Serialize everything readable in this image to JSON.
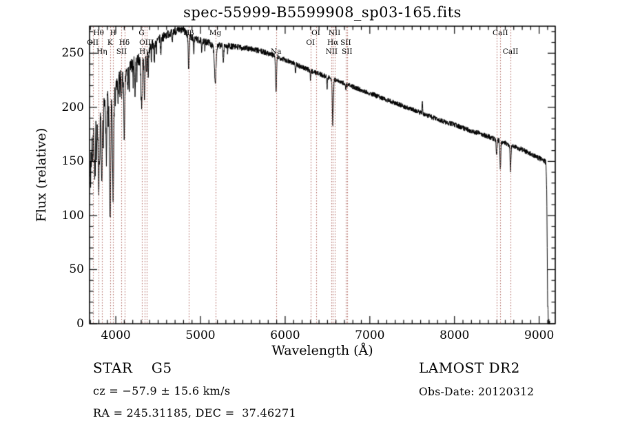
{
  "title": "spec-55999-B5599908_sp03-165.fits",
  "footer": {
    "class_label": "STAR    G5",
    "survey": "LAMOST DR2",
    "cz": "cz = −57.9 ± 15.6 km/s",
    "obs_date": "Obs-Date: 20120312",
    "radec": "RA = 245.31185, DEC =  37.46271"
  },
  "chart_data": {
    "type": "line",
    "title": "spec-55999-B5599908_sp03-165.fits",
    "xlabel": "Wavelength (Å)",
    "ylabel": "Flux (relative)",
    "xlim": [
      3690,
      9190
    ],
    "ylim": [
      0,
      275
    ],
    "x_major_ticks": [
      4000,
      5000,
      6000,
      7000,
      8000,
      9000
    ],
    "y_major_ticks": [
      0,
      50,
      100,
      150,
      200,
      250
    ],
    "x_minor_step": 100,
    "y_minor_step": 10,
    "grid": false,
    "line_color": "#000000",
    "marker_line_color": "#aa5a52",
    "wl_range": [
      3695,
      9125
    ],
    "sample_step": 2,
    "noise_seed": 7,
    "continuum": [
      [
        3690,
        130
      ],
      [
        3700,
        165
      ],
      [
        3720,
        178
      ],
      [
        3745,
        182
      ],
      [
        3780,
        180
      ],
      [
        3820,
        190
      ],
      [
        3860,
        200
      ],
      [
        3900,
        212
      ],
      [
        3940,
        212
      ],
      [
        3980,
        215
      ],
      [
        4020,
        224
      ],
      [
        4060,
        228
      ],
      [
        4100,
        228
      ],
      [
        4140,
        234
      ],
      [
        4180,
        238
      ],
      [
        4220,
        242
      ],
      [
        4260,
        244
      ],
      [
        4300,
        243
      ],
      [
        4340,
        248
      ],
      [
        4380,
        252
      ],
      [
        4440,
        258
      ],
      [
        4500,
        262
      ],
      [
        4560,
        265
      ],
      [
        4620,
        268
      ],
      [
        4680,
        270
      ],
      [
        4740,
        271
      ],
      [
        4800,
        272
      ],
      [
        4860,
        266
      ],
      [
        4920,
        264
      ],
      [
        4980,
        262
      ],
      [
        5040,
        261
      ],
      [
        5100,
        260
      ],
      [
        5160,
        255
      ],
      [
        5220,
        257
      ],
      [
        5300,
        257
      ],
      [
        5400,
        256
      ],
      [
        5500,
        255
      ],
      [
        5600,
        254
      ],
      [
        5700,
        252
      ],
      [
        5800,
        250
      ],
      [
        5900,
        247
      ],
      [
        6000,
        244
      ],
      [
        6100,
        241
      ],
      [
        6200,
        237
      ],
      [
        6300,
        234
      ],
      [
        6400,
        231
      ],
      [
        6500,
        228
      ],
      [
        6600,
        225
      ],
      [
        6700,
        222
      ],
      [
        6800,
        219
      ],
      [
        6900,
        216
      ],
      [
        7000,
        213
      ],
      [
        7100,
        210
      ],
      [
        7200,
        207
      ],
      [
        7300,
        204
      ],
      [
        7400,
        201
      ],
      [
        7500,
        198
      ],
      [
        7600,
        195
      ],
      [
        7700,
        192
      ],
      [
        7800,
        189
      ],
      [
        7900,
        186
      ],
      [
        8000,
        184
      ],
      [
        8100,
        181
      ],
      [
        8200,
        178
      ],
      [
        8300,
        176
      ],
      [
        8400,
        173
      ],
      [
        8500,
        170
      ],
      [
        8600,
        167
      ],
      [
        8700,
        164
      ],
      [
        8800,
        161
      ],
      [
        8900,
        157
      ],
      [
        9000,
        153
      ],
      [
        9050,
        151
      ],
      [
        9080,
        149
      ],
      [
        9090,
        120
      ],
      [
        9100,
        20
      ],
      [
        9110,
        2
      ],
      [
        9125,
        1
      ]
    ],
    "absorption_lines": [
      [
        3727,
        25,
        6
      ],
      [
        3750,
        40,
        5
      ],
      [
        3798,
        60,
        6
      ],
      [
        3835,
        70,
        6
      ],
      [
        3889,
        55,
        6
      ],
      [
        3933,
        120,
        7
      ],
      [
        3968,
        95,
        7
      ],
      [
        4026,
        20,
        4
      ],
      [
        4068,
        22,
        4
      ],
      [
        4101,
        55,
        6
      ],
      [
        4144,
        18,
        4
      ],
      [
        4227,
        30,
        4
      ],
      [
        4305,
        45,
        7
      ],
      [
        4340,
        40,
        6
      ],
      [
        4363,
        18,
        4
      ],
      [
        4383,
        25,
        4
      ],
      [
        4455,
        18,
        4
      ],
      [
        4531,
        15,
        4
      ],
      [
        4668,
        12,
        4
      ],
      [
        4861,
        30,
        6
      ],
      [
        4920,
        15,
        4
      ],
      [
        5015,
        12,
        4
      ],
      [
        5175,
        32,
        9
      ],
      [
        5270,
        15,
        5
      ],
      [
        5893,
        33,
        6
      ],
      [
        6122,
        8,
        4
      ],
      [
        6300,
        8,
        4
      ],
      [
        6495,
        10,
        4
      ],
      [
        6563,
        42,
        6
      ],
      [
        6717,
        6,
        4
      ],
      [
        7620,
        -12,
        3
      ],
      [
        8498,
        14,
        5
      ],
      [
        8542,
        26,
        5
      ],
      [
        8662,
        24,
        5
      ]
    ],
    "noise_spikes": [
      [
        3702,
        45
      ],
      [
        3712,
        30
      ],
      [
        3758,
        35
      ],
      [
        3772,
        25
      ],
      [
        3810,
        30
      ],
      [
        3852,
        35
      ],
      [
        3912,
        25
      ],
      [
        3995,
        20
      ],
      [
        4049,
        18
      ],
      [
        4160,
        22
      ],
      [
        4205,
        20
      ],
      [
        4248,
        16
      ],
      [
        4420,
        15
      ],
      [
        4480,
        12
      ],
      [
        5052,
        8
      ],
      [
        5320,
        6
      ]
    ],
    "noise_profile": [
      [
        3690,
        11
      ],
      [
        3800,
        9
      ],
      [
        3950,
        8
      ],
      [
        4100,
        7
      ],
      [
        4300,
        5.5
      ],
      [
        4600,
        4
      ],
      [
        5000,
        3.2
      ],
      [
        5500,
        2.8
      ],
      [
        6000,
        2.5
      ],
      [
        6600,
        2.2
      ],
      [
        7300,
        2.2
      ],
      [
        8000,
        2.3
      ],
      [
        8700,
        2.4
      ],
      [
        9190,
        2.5
      ]
    ],
    "spectral_lines": [
      {
        "label": "OII",
        "wl": 3727,
        "row": 2
      },
      {
        "label": "Hθ",
        "wl": 3798,
        "row": 1
      },
      {
        "label": "Hη",
        "wl": 3835,
        "row": 3
      },
      {
        "label": "K",
        "wl": 3933,
        "row": 2
      },
      {
        "label": "H",
        "wl": 3968,
        "row": 1
      },
      {
        "label": "SII",
        "wl": 4068,
        "row": 3
      },
      {
        "label": "Hδ",
        "wl": 4101,
        "row": 2
      },
      {
        "label": "G",
        "wl": 4305,
        "row": 1
      },
      {
        "label": "Hγ",
        "wl": 4340,
        "row": 3
      },
      {
        "label": "OIII",
        "wl": 4363,
        "row": 2
      },
      {
        "label": "Hβ",
        "wl": 4861,
        "row": 1
      },
      {
        "label": "Mg",
        "wl": 5175,
        "row": 1
      },
      {
        "label": "Na",
        "wl": 5893,
        "row": 3
      },
      {
        "label": "OI",
        "wl": 6300,
        "row": 2
      },
      {
        "label": "OI",
        "wl": 6363,
        "row": 1
      },
      {
        "label": "NII",
        "wl": 6548,
        "row": 3
      },
      {
        "label": "Hα",
        "wl": 6563,
        "row": 2
      },
      {
        "label": "NII",
        "wl": 6583,
        "row": 1
      },
      {
        "label": "SII",
        "wl": 6716,
        "row": 2
      },
      {
        "label": "SII",
        "wl": 6731,
        "row": 3
      },
      {
        "label": "",
        "wl": 8498,
        "row": 2
      },
      {
        "label": "CaII",
        "wl": 8542,
        "row": 1
      },
      {
        "label": "CaII",
        "wl": 8662,
        "row": 3
      }
    ]
  }
}
